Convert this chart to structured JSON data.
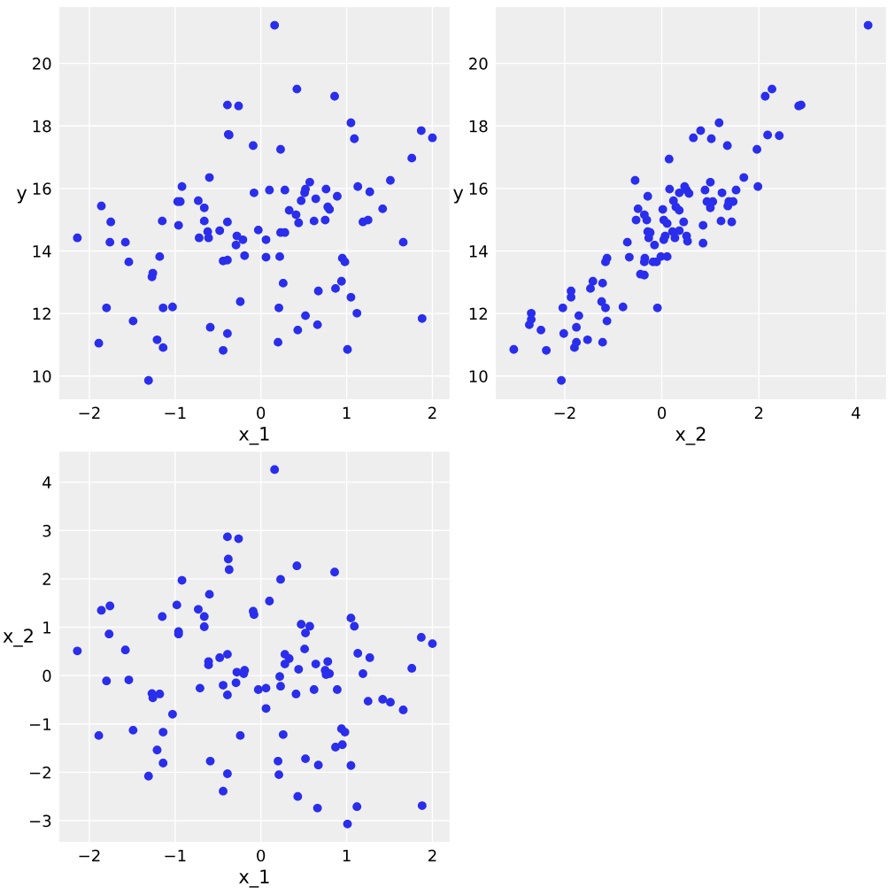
{
  "chart_data": [
    {
      "type": "scatter",
      "xlabel": "x_1",
      "ylabel": "y",
      "grid": true,
      "marker": "circle",
      "xlim": [
        -2.35,
        2.2
      ],
      "ylim": [
        9.26,
        21.8
      ],
      "xticks": [
        -2,
        -1,
        0,
        1,
        2
      ],
      "yticks": [
        10,
        12,
        14,
        16,
        18,
        20
      ],
      "series": [
        {
          "color": "#2a2eec",
          "x": [
            -2.14,
            -1.89,
            -1.86,
            -1.8,
            -1.76,
            -1.75,
            -1.58,
            -1.54,
            -1.49,
            -1.31,
            -1.27,
            -1.26,
            -1.21,
            -1.18,
            -1.15,
            -1.14,
            -1.14,
            -1.03,
            -0.97,
            -0.94,
            -0.96,
            -0.92,
            -0.72,
            -0.73,
            -0.66,
            -0.66,
            -0.62,
            -0.61,
            -0.6,
            -0.59,
            -0.48,
            -0.44,
            -0.44,
            -0.39,
            -0.39,
            -0.39,
            -0.38,
            -0.37,
            -0.39,
            -0.26,
            -0.29,
            -0.28,
            -0.24,
            -0.21,
            -0.19,
            -0.09,
            -0.08,
            -0.03,
            0.06,
            0.06,
            0.1,
            0.16,
            0.2,
            0.21,
            0.22,
            0.23,
            0.23,
            0.28,
            0.26,
            0.28,
            0.33,
            0.41,
            0.42,
            0.44,
            0.43,
            0.47,
            0.51,
            0.52,
            0.52,
            0.57,
            0.62,
            0.64,
            0.66,
            0.67,
            0.75,
            0.76,
            0.78,
            0.8,
            0.86,
            0.87,
            0.89,
            0.94,
            0.95,
            0.98,
            1.01,
            1.05,
            1.05,
            1.09,
            1.12,
            1.13,
            1.19,
            1.25,
            1.27,
            1.42,
            1.51,
            1.66,
            1.76,
            1.87,
            1.88,
            2.0
          ],
          "values": [
            14.42,
            11.05,
            15.44,
            12.18,
            14.28,
            14.93,
            14.28,
            13.65,
            11.76,
            9.86,
            13.17,
            13.29,
            11.16,
            13.82,
            14.96,
            12.18,
            10.91,
            12.21,
            15.58,
            15.58,
            14.82,
            16.06,
            14.42,
            15.61,
            15.38,
            14.96,
            14.62,
            14.42,
            16.35,
            11.56,
            14.65,
            13.68,
            10.82,
            18.67,
            13.71,
            14.93,
            17.73,
            17.71,
            11.36,
            18.64,
            14.19,
            14.48,
            12.38,
            14.36,
            13.85,
            17.37,
            15.86,
            14.67,
            14.36,
            13.8,
            15.95,
            21.22,
            11.08,
            12.18,
            13.82,
            17.25,
            14.59,
            14.59,
            12.97,
            15.95,
            15.3,
            15.16,
            19.18,
            14.9,
            11.47,
            15.61,
            15.86,
            15.98,
            11.93,
            16.2,
            14.96,
            15.67,
            11.64,
            12.72,
            14.99,
            15.98,
            15.41,
            15.33,
            18.95,
            12.8,
            15.75,
            13.03,
            13.77,
            13.65,
            10.85,
            18.1,
            12.52,
            17.59,
            12.01,
            16.06,
            14.93,
            14.99,
            15.89,
            15.35,
            16.26,
            14.28,
            16.97,
            17.85,
            11.84,
            17.62
          ]
        }
      ]
    },
    {
      "type": "scatter",
      "xlabel": "x_2",
      "ylabel": "y",
      "grid": true,
      "marker": "circle",
      "xlim": [
        -3.42,
        4.62
      ],
      "ylim": [
        9.26,
        21.8
      ],
      "xticks": [
        -2,
        0,
        2,
        4
      ],
      "yticks": [
        10,
        12,
        14,
        16,
        18,
        20
      ],
      "series": [
        {
          "color": "#2a2eec",
          "x": [
            -3.05,
            -2.69,
            -2.69,
            -2.73,
            -2.49,
            -2.38,
            -2.07,
            -2.04,
            -2.02,
            -1.87,
            -1.87,
            -1.8,
            -1.76,
            -1.76,
            -1.71,
            -1.53,
            -1.47,
            -1.42,
            -1.22,
            -1.24,
            -1.22,
            -1.16,
            -1.16,
            -1.13,
            -1.13,
            -0.8,
            -0.71,
            -0.67,
            -0.55,
            -0.53,
            -0.49,
            -0.44,
            -0.36,
            -0.36,
            -0.35,
            -0.36,
            -0.29,
            -0.31,
            -0.29,
            -0.27,
            -0.24,
            -0.18,
            -0.15,
            -0.11,
            -0.09,
            -0.02,
            0.02,
            0.04,
            0.04,
            0.07,
            0.11,
            0.11,
            0.15,
            0.16,
            0.22,
            0.24,
            0.27,
            0.29,
            0.36,
            0.36,
            0.36,
            0.45,
            0.47,
            0.51,
            0.51,
            0.53,
            0.56,
            0.65,
            0.8,
            0.85,
            0.85,
            0.89,
            0.93,
            1.0,
            1.0,
            1.02,
            1.05,
            1.18,
            1.22,
            1.24,
            1.35,
            1.36,
            1.38,
            1.44,
            1.47,
            1.53,
            1.69,
            1.96,
            1.98,
            2.13,
            2.18,
            2.27,
            2.42,
            2.82,
            2.87,
            4.25
          ],
          "values": [
            10.85,
            12.01,
            11.81,
            11.64,
            11.47,
            10.82,
            9.86,
            12.18,
            11.36,
            12.52,
            12.72,
            10.91,
            11.08,
            11.56,
            11.93,
            11.16,
            12.8,
            13.03,
            12.97,
            12.38,
            11.08,
            12.18,
            13.65,
            13.77,
            11.76,
            12.21,
            14.28,
            13.8,
            16.26,
            14.99,
            15.35,
            13.26,
            15.16,
            13.23,
            13.77,
            13.65,
            15.75,
            14.99,
            14.62,
            14.42,
            14.59,
            13.65,
            14.19,
            13.65,
            12.18,
            13.82,
            15.33,
            14.99,
            14.36,
            14.48,
            14.88,
            13.82,
            16.94,
            15.98,
            14.62,
            15.61,
            14.42,
            15.41,
            15.3,
            15.86,
            14.65,
            14.93,
            16.06,
            15.95,
            14.48,
            14.31,
            15.84,
            17.62,
            17.85,
            14.82,
            14.25,
            15.95,
            15.58,
            15.38,
            16.2,
            17.59,
            15.58,
            18.1,
            14.96,
            15.86,
            17.37,
            15.44,
            15.58,
            14.93,
            15.58,
            15.95,
            16.35,
            17.25,
            16.06,
            18.95,
            17.71,
            19.18,
            17.69,
            18.64,
            18.67,
            21.22
          ]
        }
      ]
    },
    {
      "type": "scatter",
      "xlabel": "x_1",
      "ylabel": "x_2",
      "grid": true,
      "marker": "circle",
      "xlim": [
        -2.35,
        2.2
      ],
      "ylim": [
        -3.44,
        4.63
      ],
      "xticks": [
        -2,
        -1,
        0,
        1,
        2
      ],
      "yticks": [
        -3,
        -2,
        -1,
        0,
        1,
        2,
        3,
        4
      ],
      "series": [
        {
          "color": "#2a2eec",
          "x": [
            -2.14,
            -1.89,
            -1.86,
            -1.76,
            -1.77,
            -1.8,
            -1.58,
            -1.54,
            -1.49,
            -1.31,
            -1.27,
            -1.26,
            -1.18,
            -1.21,
            -1.15,
            -1.14,
            -1.14,
            -1.03,
            -0.98,
            -0.96,
            -0.96,
            -0.92,
            -0.73,
            -0.71,
            -0.66,
            -0.66,
            -0.61,
            -0.6,
            -0.61,
            -0.59,
            -0.48,
            -0.44,
            -0.44,
            -0.39,
            -0.38,
            -0.37,
            -0.39,
            -0.39,
            -0.39,
            -0.26,
            -0.29,
            -0.28,
            -0.24,
            -0.2,
            -0.19,
            -0.09,
            -0.08,
            -0.03,
            0.06,
            0.06,
            0.1,
            0.16,
            0.2,
            0.21,
            0.22,
            0.23,
            0.23,
            0.26,
            0.28,
            0.28,
            0.33,
            0.41,
            0.42,
            0.44,
            0.43,
            0.47,
            0.52,
            0.51,
            0.52,
            0.57,
            0.62,
            0.64,
            0.66,
            0.67,
            0.75,
            0.76,
            0.78,
            0.8,
            0.86,
            0.87,
            0.89,
            0.94,
            0.95,
            0.98,
            1.01,
            1.05,
            1.05,
            1.09,
            1.12,
            1.13,
            1.19,
            1.25,
            1.27,
            1.42,
            1.51,
            1.66,
            1.76,
            1.87,
            1.88,
            2.0
          ],
          "values": [
            0.51,
            -1.24,
            1.35,
            1.44,
            0.86,
            -0.11,
            0.53,
            -0.09,
            -1.13,
            -2.08,
            -0.37,
            -0.46,
            -0.38,
            -1.54,
            1.22,
            -1.17,
            -1.81,
            -0.8,
            1.46,
            0.91,
            0.86,
            1.97,
            1.37,
            -0.26,
            1.22,
            1.01,
            0.22,
            1.68,
            0.29,
            -1.77,
            0.37,
            -0.2,
            -2.39,
            2.87,
            2.41,
            2.19,
            0.44,
            -0.4,
            -2.03,
            2.83,
            -0.15,
            0.07,
            -1.24,
            0.04,
            0.11,
            1.33,
            1.26,
            -0.29,
            -0.26,
            -0.68,
            1.54,
            4.26,
            -1.77,
            -2.05,
            -0.02,
            1.99,
            -0.22,
            -1.22,
            0.44,
            0.24,
            0.35,
            -0.38,
            2.27,
            0.13,
            -2.5,
            1.06,
            0.88,
            0.55,
            -1.72,
            1.02,
            -0.29,
            0.24,
            -2.74,
            -1.85,
            0.11,
            0.02,
            0.29,
            0.04,
            2.14,
            -1.48,
            -0.29,
            -1.1,
            -1.43,
            -1.17,
            -3.07,
            1.19,
            -1.86,
            1.02,
            -2.71,
            0.46,
            0.04,
            -0.53,
            0.37,
            -0.49,
            -0.55,
            -0.71,
            0.15,
            0.79,
            -2.69,
            0.66
          ]
        }
      ]
    }
  ]
}
